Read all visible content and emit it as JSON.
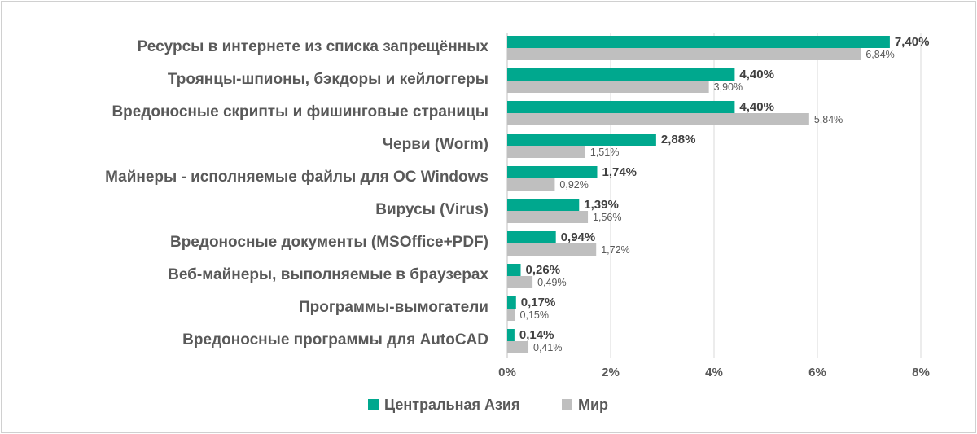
{
  "chart_data": {
    "type": "bar",
    "orientation": "horizontal",
    "categories": [
      "Ресурсы в интернете из списка запрещённых",
      "Троянцы-шпионы, бэкдоры и кейлоггеры",
      "Вредоносные скрипты и фишинговые страницы",
      "Черви (Worm)",
      "Майнеры - исполняемые файлы для ОС Windows",
      "Вирусы (Virus)",
      "Вредоносные документы (MSOffice+PDF)",
      "Веб-майнеры, выполняемые в браузерах",
      "Программы-вымогатели",
      "Вредоносные программы для AutoCAD"
    ],
    "series": [
      {
        "name": "Центральная Азия",
        "color": "#00a88e",
        "values": [
          7.4,
          4.4,
          4.4,
          2.88,
          1.74,
          1.39,
          0.94,
          0.26,
          0.17,
          0.14
        ],
        "labels": [
          "7,40%",
          "4,40%",
          "4,40%",
          "2,88%",
          "1,74%",
          "1,39%",
          "0,94%",
          "0,26%",
          "0,17%",
          "0,14%"
        ]
      },
      {
        "name": "Мир",
        "color": "#bfbfbf",
        "values": [
          6.84,
          3.9,
          5.84,
          1.51,
          0.92,
          1.56,
          1.72,
          0.49,
          0.15,
          0.41
        ],
        "labels": [
          "6,84%",
          "3,90%",
          "5,84%",
          "1,51%",
          "0,92%",
          "1,56%",
          "1,72%",
          "0,49%",
          "0,15%",
          "0,41%"
        ]
      }
    ],
    "xlim": [
      0,
      8
    ],
    "xticks": [
      0,
      2,
      4,
      6,
      8
    ],
    "xtick_labels": [
      "0%",
      "2%",
      "4%",
      "6%",
      "8%"
    ],
    "grid": "vertical",
    "legend": "bottom-center",
    "title": "",
    "xlabel": "",
    "ylabel": ""
  }
}
